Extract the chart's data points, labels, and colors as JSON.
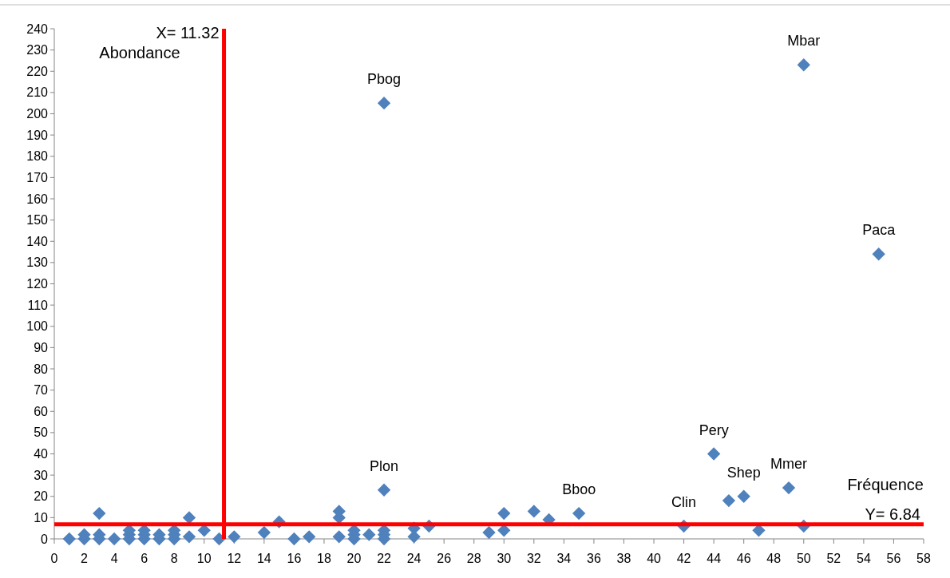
{
  "chart_data": {
    "type": "scatter",
    "xlabel": "Fréquence",
    "ylabel": "Abondance",
    "xlim": [
      0,
      58
    ],
    "ylim": [
      0,
      240
    ],
    "xticks": [
      0,
      2,
      4,
      6,
      8,
      10,
      12,
      14,
      16,
      18,
      20,
      22,
      24,
      26,
      28,
      30,
      32,
      34,
      36,
      38,
      40,
      42,
      44,
      46,
      48,
      50,
      52,
      54,
      56,
      58
    ],
    "yticks": [
      0,
      10,
      20,
      30,
      40,
      50,
      60,
      70,
      80,
      90,
      100,
      110,
      120,
      130,
      140,
      150,
      160,
      170,
      180,
      190,
      200,
      210,
      220,
      230,
      240
    ],
    "grid": false,
    "marker": "diamond",
    "series": [
      {
        "color": "#4f81bd",
        "x": [
          1,
          2,
          2,
          3,
          3,
          3,
          4,
          5,
          5,
          5,
          6,
          6,
          6,
          7,
          7,
          8,
          8,
          8,
          9,
          9,
          10,
          11,
          12,
          14,
          15,
          16,
          17,
          19,
          19,
          19,
          20,
          20,
          20,
          21,
          22,
          22,
          22,
          22,
          22,
          24,
          24,
          25,
          29,
          30,
          30,
          32,
          33,
          35,
          42,
          44,
          45,
          46,
          47,
          49,
          50,
          50,
          55
        ],
        "values": [
          0,
          0,
          2,
          0,
          2,
          12,
          0,
          0,
          2,
          4,
          0,
          2,
          4,
          0,
          2,
          0,
          2,
          4,
          1,
          10,
          4,
          0,
          1,
          3,
          8,
          0,
          1,
          1,
          10,
          13,
          0,
          2,
          4,
          2,
          0,
          2,
          4,
          23,
          205,
          1,
          5,
          6,
          3,
          4,
          12,
          13,
          9,
          12,
          6,
          40,
          18,
          20,
          4,
          24,
          6,
          223,
          134
        ]
      }
    ],
    "ref_lines": [
      {
        "axis": "x",
        "value": 11.32,
        "label": "X= 11.32",
        "color": "#ff0000"
      },
      {
        "axis": "y",
        "value": 6.84,
        "label": "Y= 6.84",
        "color": "#ff0000"
      }
    ],
    "annotations": [
      {
        "text": "Pbog",
        "x": 22,
        "y": 205
      },
      {
        "text": "Mbar",
        "x": 50,
        "y": 223
      },
      {
        "text": "Paca",
        "x": 55,
        "y": 134
      },
      {
        "text": "Plon",
        "x": 22,
        "y": 23
      },
      {
        "text": "Bboo",
        "x": 35,
        "y": 12
      },
      {
        "text": "Pery",
        "x": 44,
        "y": 40
      },
      {
        "text": "Clin",
        "x": 42,
        "y": 6
      },
      {
        "text": "Shep",
        "x": 46,
        "y": 20
      },
      {
        "text": "Mmer",
        "x": 49,
        "y": 24
      }
    ]
  }
}
